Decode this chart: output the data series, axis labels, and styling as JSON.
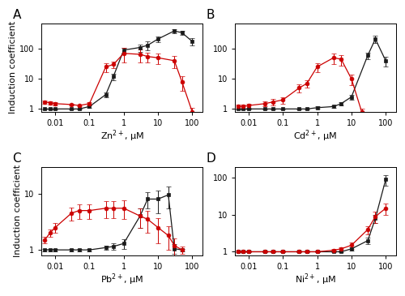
{
  "A": {
    "label": "Zn$^{2+}$, μM",
    "black_x": [
      0.005,
      0.007,
      0.01,
      0.03,
      0.05,
      0.1,
      0.3,
      0.5,
      1,
      3,
      5,
      10,
      30,
      50,
      100
    ],
    "black_y": [
      1,
      1,
      1,
      1,
      1,
      1.2,
      3,
      12,
      90,
      110,
      130,
      210,
      390,
      340,
      175
    ],
    "black_yerr": [
      0.05,
      0.05,
      0.05,
      0.05,
      0.05,
      0.1,
      0.5,
      3,
      20,
      30,
      40,
      50,
      60,
      60,
      45
    ],
    "red_x": [
      0.005,
      0.007,
      0.01,
      0.03,
      0.05,
      0.1,
      0.3,
      0.5,
      1,
      3,
      5,
      10,
      30,
      50,
      100
    ],
    "red_y": [
      1.7,
      1.6,
      1.5,
      1.4,
      1.3,
      1.5,
      25,
      30,
      70,
      65,
      55,
      50,
      40,
      8,
      0.8
    ],
    "red_yerr": [
      0.2,
      0.2,
      0.2,
      0.1,
      0.1,
      0.2,
      8,
      8,
      35,
      30,
      20,
      20,
      18,
      4,
      0.3
    ],
    "ylim": [
      0.8,
      700
    ],
    "yticks": [
      1,
      10,
      100
    ],
    "panel": "A"
  },
  "B": {
    "label": "Cd$^{2+}$, μM",
    "black_x": [
      0.005,
      0.007,
      0.01,
      0.03,
      0.05,
      0.1,
      0.3,
      0.5,
      1,
      3,
      5,
      10,
      30,
      50,
      100
    ],
    "black_y": [
      1,
      1,
      1,
      1,
      1,
      1,
      1,
      1,
      1.1,
      1.2,
      1.5,
      2.5,
      60,
      210,
      40
    ],
    "black_yerr": [
      0.05,
      0.05,
      0.05,
      0.05,
      0.05,
      0.05,
      0.05,
      0.05,
      0.1,
      0.1,
      0.2,
      0.5,
      15,
      55,
      15
    ],
    "red_x": [
      0.005,
      0.007,
      0.01,
      0.03,
      0.05,
      0.1,
      0.3,
      0.5,
      1,
      3,
      5,
      10,
      20
    ],
    "red_y": [
      1.2,
      1.2,
      1.3,
      1.5,
      1.7,
      2.0,
      5,
      7,
      25,
      50,
      45,
      10,
      0.8
    ],
    "red_yerr": [
      0.15,
      0.15,
      0.2,
      0.3,
      0.4,
      0.5,
      1.5,
      2,
      8,
      20,
      18,
      4,
      0.2
    ],
    "ylim": [
      0.8,
      700
    ],
    "yticks": [
      1,
      10,
      100
    ],
    "panel": "B"
  },
  "C": {
    "label": "Pb$^{2+}$, μM",
    "black_x": [
      0.005,
      0.007,
      0.01,
      0.03,
      0.05,
      0.1,
      0.3,
      0.5,
      1,
      3,
      5,
      10,
      20,
      30,
      50
    ],
    "black_y": [
      1,
      1,
      1,
      1,
      1,
      1,
      1.1,
      1.15,
      1.3,
      4,
      8,
      8,
      9.5,
      1.05,
      1
    ],
    "black_yerr": [
      0.05,
      0.05,
      0.05,
      0.05,
      0.05,
      0.05,
      0.1,
      0.15,
      0.25,
      1.5,
      2.5,
      3.5,
      4,
      0.2,
      0.05
    ],
    "red_x": [
      0.005,
      0.007,
      0.01,
      0.03,
      0.05,
      0.1,
      0.3,
      0.5,
      1,
      3,
      5,
      10,
      20,
      30,
      50
    ],
    "red_y": [
      1.5,
      2.0,
      2.5,
      4.5,
      5,
      5,
      5.5,
      5.5,
      5.5,
      4,
      3.5,
      2.5,
      1.8,
      1.2,
      1.0
    ],
    "red_yerr": [
      0.2,
      0.3,
      0.5,
      1.2,
      1.5,
      1.5,
      1.8,
      1.8,
      2,
      1.5,
      1.5,
      1.2,
      0.8,
      0.4,
      0.15
    ],
    "ylim": [
      0.8,
      30
    ],
    "yticks": [
      1,
      10
    ],
    "panel": "C"
  },
  "D": {
    "label": "Ni$^{2+}$, μM",
    "black_x": [
      0.005,
      0.007,
      0.01,
      0.03,
      0.05,
      0.1,
      0.3,
      0.5,
      1,
      3,
      5,
      10,
      30,
      50,
      100
    ],
    "black_y": [
      1,
      1,
      1,
      1,
      1,
      1,
      1,
      1,
      1,
      1,
      1,
      1.2,
      2,
      8,
      90
    ],
    "black_yerr": [
      0.05,
      0.05,
      0.05,
      0.05,
      0.05,
      0.05,
      0.05,
      0.05,
      0.05,
      0.05,
      0.05,
      0.1,
      0.4,
      2,
      30
    ],
    "red_x": [
      0.005,
      0.007,
      0.01,
      0.03,
      0.05,
      0.1,
      0.3,
      0.5,
      1,
      3,
      5,
      10,
      30,
      50,
      100
    ],
    "red_y": [
      1,
      1,
      1,
      1,
      1,
      1,
      1,
      1,
      1,
      1.1,
      1.2,
      1.5,
      4,
      9,
      15
    ],
    "red_yerr": [
      0.05,
      0.05,
      0.05,
      0.05,
      0.05,
      0.05,
      0.05,
      0.05,
      0.05,
      0.1,
      0.15,
      0.3,
      1,
      3,
      5
    ],
    "ylim": [
      0.8,
      200
    ],
    "yticks": [
      1,
      10,
      100
    ],
    "panel": "D"
  },
  "black_color": "#1a1a1a",
  "red_color": "#cc0000",
  "bg_color": "#ffffff",
  "xlabel_fontsize": 8,
  "ylabel_fontsize": 8,
  "panel_label_fontsize": 11,
  "xlim": [
    0.004,
    200
  ],
  "xticks": [
    0.01,
    0.1,
    1,
    10,
    100
  ]
}
